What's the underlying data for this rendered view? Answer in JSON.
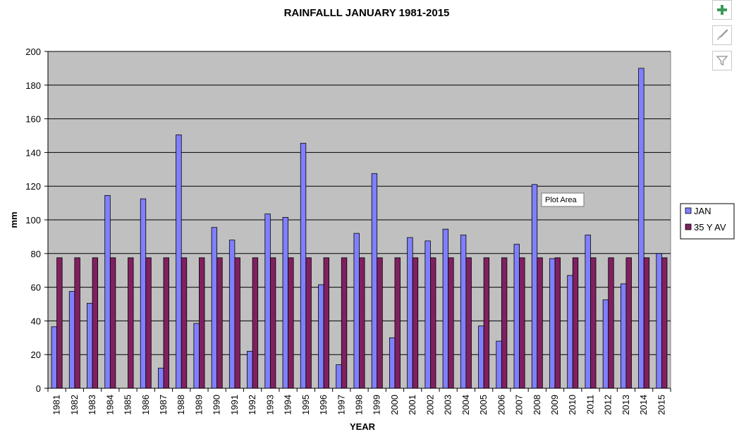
{
  "chart_data": {
    "type": "bar",
    "title": "RAINFALLL JANUARY 1981-2015",
    "xlabel": "YEAR",
    "ylabel": "mm",
    "ylim": [
      0,
      200
    ],
    "yticks": [
      0,
      20,
      40,
      60,
      80,
      100,
      120,
      140,
      160,
      180,
      200
    ],
    "grid": true,
    "legend_position": "right",
    "categories": [
      "1981",
      "1982",
      "1983",
      "1984",
      "1985",
      "1986",
      "1987",
      "1988",
      "1989",
      "1990",
      "1991",
      "1992",
      "1993",
      "1994",
      "1995",
      "1996",
      "1997",
      "1998",
      "1999",
      "2000",
      "2001",
      "2002",
      "2003",
      "2004",
      "2005",
      "2006",
      "2007",
      "2008",
      "2009",
      "2010",
      "2011",
      "2012",
      "2013",
      "2014",
      "2015"
    ],
    "series": [
      {
        "name": "JAN",
        "color": "#8080ff",
        "values": [
          36.5,
          57.5,
          50.5,
          114.5,
          0,
          112.5,
          12,
          150.5,
          38.5,
          95.5,
          88,
          22,
          103.5,
          101.5,
          145.5,
          61.5,
          14,
          92,
          127.5,
          30,
          89.5,
          87.5,
          94.5,
          91,
          37,
          28,
          85.5,
          121,
          77,
          67,
          91,
          52.5,
          62,
          190,
          80
        ]
      },
      {
        "name": "35 Y AV",
        "color": "#802060",
        "values": [
          77.5,
          77.5,
          77.5,
          77.5,
          77.5,
          77.5,
          77.5,
          77.5,
          77.5,
          77.5,
          77.5,
          77.5,
          77.5,
          77.5,
          77.5,
          77.5,
          77.5,
          77.5,
          77.5,
          77.5,
          77.5,
          77.5,
          77.5,
          77.5,
          77.5,
          77.5,
          77.5,
          77.5,
          77.5,
          77.5,
          77.5,
          77.5,
          77.5,
          77.5,
          77.5
        ]
      }
    ],
    "plot_background": "#c0c0c0"
  },
  "tooltip": {
    "text": "Plot Area"
  },
  "side_buttons": [
    {
      "icon": "plus-icon"
    },
    {
      "icon": "brush-icon"
    },
    {
      "icon": "filter-icon"
    }
  ]
}
